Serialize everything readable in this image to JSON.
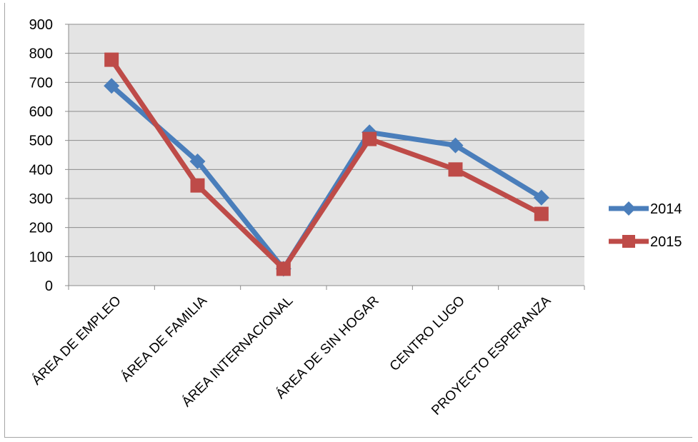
{
  "chart_data": {
    "type": "line",
    "categories": [
      "ÁREA DE EMPLEO",
      "ÁREA DE FAMILIA",
      "ÁREA INTERNACIONAL",
      "ÁREA DE SIN HOGAR",
      "CENTRO LUGO",
      "PROYECTO ESPERANZA"
    ],
    "series": [
      {
        "name": "2014",
        "values": [
          688,
          428,
          58,
          528,
          483,
          303
        ],
        "color": "#4a7ebb",
        "marker": "diamond"
      },
      {
        "name": "2015",
        "values": [
          778,
          345,
          58,
          505,
          400,
          247
        ],
        "color": "#be4b48",
        "marker": "square"
      }
    ],
    "yticks": [
      "0",
      "100",
      "200",
      "300",
      "400",
      "500",
      "600",
      "700",
      "800",
      "900"
    ],
    "ylim": [
      0,
      900
    ],
    "grid": true,
    "plot_background": "#e4e4e4",
    "legend_position": "right",
    "title": "",
    "xlabel": "",
    "ylabel": ""
  }
}
